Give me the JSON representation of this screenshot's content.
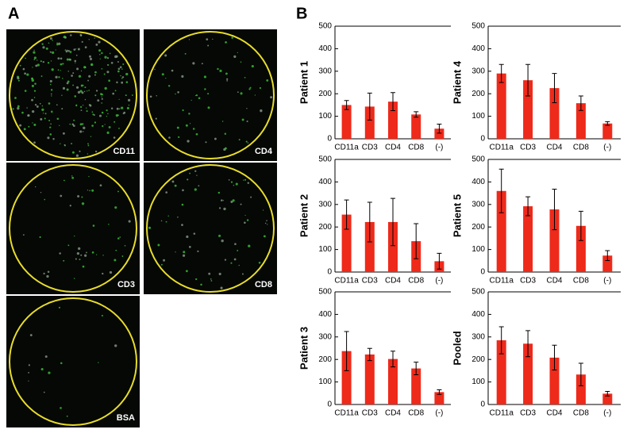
{
  "panels": {
    "a": "A",
    "b": "B"
  },
  "images": [
    "CD11",
    "CD4",
    "CD3",
    "CD8",
    "BSA"
  ],
  "chart_data": [
    {
      "type": "bar",
      "ylabel": "Patient 1",
      "categories": [
        "CD11a",
        "CD3",
        "CD4",
        "CD8",
        "(-)"
      ],
      "values": [
        150,
        143,
        165,
        108,
        45
      ],
      "errors": [
        20,
        60,
        40,
        12,
        20
      ],
      "color": "#ee2a1b",
      "ylim": [
        0,
        500
      ],
      "yticks": [
        0,
        100,
        200,
        300,
        400,
        500
      ]
    },
    {
      "type": "bar",
      "ylabel": "Patient  4",
      "categories": [
        "CD11a",
        "CD3",
        "CD4",
        "CD8",
        "(-)"
      ],
      "values": [
        290,
        260,
        225,
        158,
        68
      ],
      "errors": [
        40,
        70,
        65,
        32,
        8
      ],
      "color": "#ee2a1b",
      "ylim": [
        0,
        500
      ],
      "yticks": [
        0,
        100,
        200,
        300,
        400,
        500
      ]
    },
    {
      "type": "bar",
      "ylabel": "Patient 2",
      "categories": [
        "CD11a",
        "CD3",
        "CD4",
        "CD8",
        "(-)"
      ],
      "values": [
        255,
        222,
        222,
        137,
        48
      ],
      "errors": [
        65,
        88,
        105,
        78,
        35
      ],
      "color": "#ee2a1b",
      "ylim": [
        0,
        500
      ],
      "yticks": [
        0,
        100,
        200,
        300,
        400,
        500
      ]
    },
    {
      "type": "bar",
      "ylabel": "Patient 5",
      "categories": [
        "CD11a",
        "CD3",
        "CD4",
        "CD8",
        "(-)"
      ],
      "values": [
        360,
        292,
        278,
        205,
        73
      ],
      "errors": [
        97,
        42,
        90,
        65,
        22
      ],
      "color": "#ee2a1b",
      "ylim": [
        0,
        500
      ],
      "yticks": [
        0,
        100,
        200,
        300,
        400,
        500
      ]
    },
    {
      "type": "bar",
      "ylabel": "Patient 3",
      "categories": [
        "CD11a",
        "CD3",
        "CD4",
        "CD8",
        "(-)"
      ],
      "values": [
        237,
        222,
        202,
        160,
        55
      ],
      "errors": [
        87,
        27,
        35,
        28,
        10
      ],
      "color": "#ee2a1b",
      "ylim": [
        0,
        500
      ],
      "yticks": [
        0,
        100,
        200,
        300,
        400,
        500
      ]
    },
    {
      "type": "bar",
      "ylabel": "Pooled",
      "categories": [
        "CD11a",
        "CD3",
        "CD4",
        "CD8",
        "(-)"
      ],
      "values": [
        285,
        270,
        208,
        133,
        48
      ],
      "errors": [
        60,
        58,
        55,
        50,
        10
      ],
      "color": "#ee2a1b",
      "ylim": [
        0,
        500
      ],
      "yticks": [
        0,
        100,
        200,
        300,
        400,
        500
      ]
    }
  ]
}
